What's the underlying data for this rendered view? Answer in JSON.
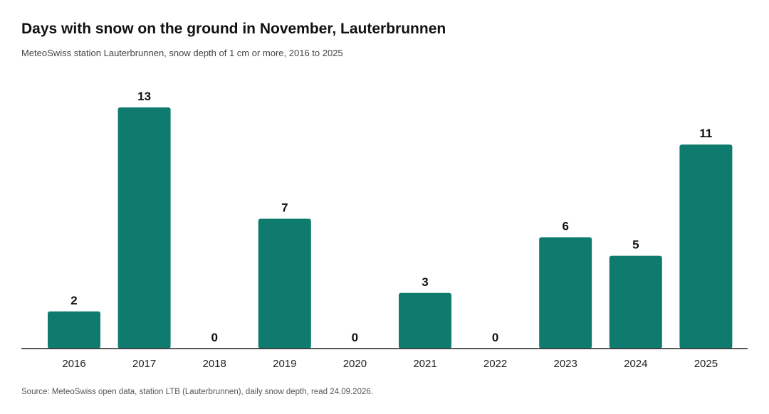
{
  "title": "Days with snow on the ground in November, Lauterbrunnen",
  "subtitle": "MeteoSwiss station Lauterbrunnen, snow depth of 1 cm or more, 2016 to 2025",
  "source": "Source: MeteoSwiss open data, station LTB (Lauterbrunnen), daily snow depth, read 24.09.2026.",
  "colors": {
    "bar": "#0f7b6e",
    "axis": "#222222"
  },
  "chart_data": {
    "type": "bar",
    "categories": [
      "2016",
      "2017",
      "2018",
      "2019",
      "2020",
      "2021",
      "2022",
      "2023",
      "2024",
      "2025"
    ],
    "values": [
      2,
      13,
      0,
      7,
      0,
      3,
      0,
      6,
      5,
      11
    ],
    "xlabel": "",
    "ylabel": "",
    "ylim": [
      0,
      13
    ],
    "grid": false,
    "legend": "none",
    "data_labels": true
  }
}
